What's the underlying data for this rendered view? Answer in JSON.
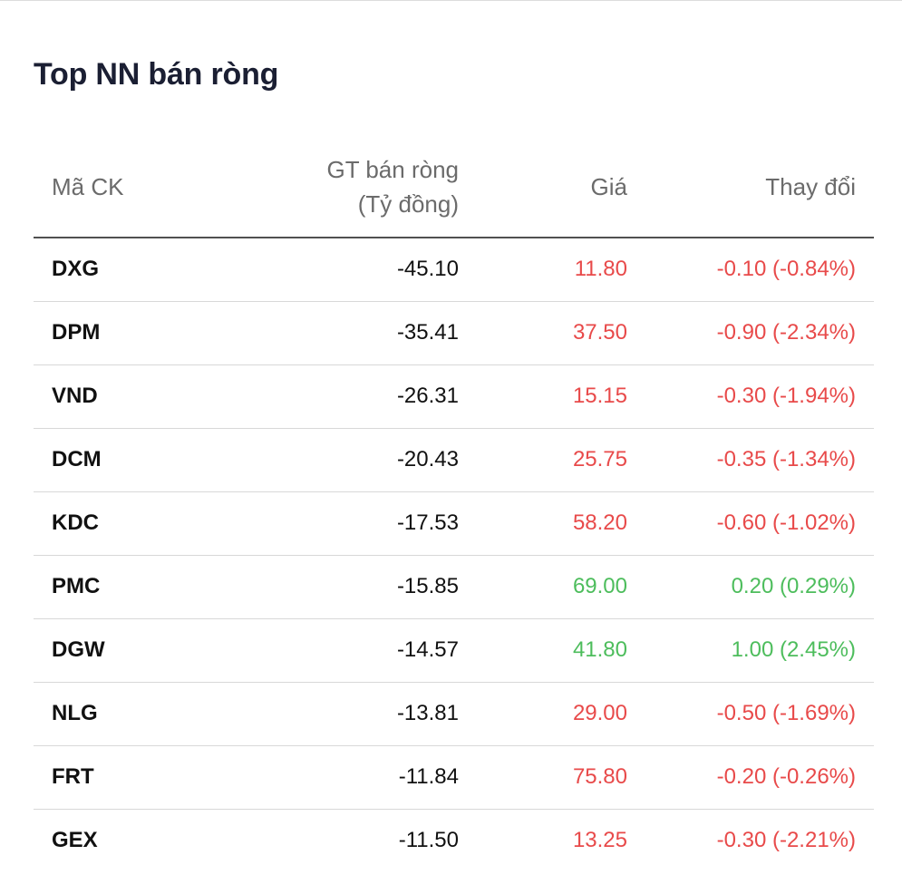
{
  "title": "Top NN bán ròng",
  "headers": {
    "code": "Mã CK",
    "value_line1": "GT bán ròng",
    "value_line2": "(Tỷ đồng)",
    "price": "Giá",
    "change": "Thay đổi"
  },
  "colors": {
    "down": "#e84a4a",
    "up": "#4dbd5c"
  },
  "rows": [
    {
      "code": "DXG",
      "value": "-45.10",
      "price": "11.80",
      "change": "-0.10 (-0.84%)",
      "trend": "down"
    },
    {
      "code": "DPM",
      "value": "-35.41",
      "price": "37.50",
      "change": "-0.90 (-2.34%)",
      "trend": "down"
    },
    {
      "code": "VND",
      "value": "-26.31",
      "price": "15.15",
      "change": "-0.30 (-1.94%)",
      "trend": "down"
    },
    {
      "code": "DCM",
      "value": "-20.43",
      "price": "25.75",
      "change": "-0.35 (-1.34%)",
      "trend": "down"
    },
    {
      "code": "KDC",
      "value": "-17.53",
      "price": "58.20",
      "change": "-0.60 (-1.02%)",
      "trend": "down"
    },
    {
      "code": "PMC",
      "value": "-15.85",
      "price": "69.00",
      "change": "0.20 (0.29%)",
      "trend": "up"
    },
    {
      "code": "DGW",
      "value": "-14.57",
      "price": "41.80",
      "change": "1.00 (2.45%)",
      "trend": "up"
    },
    {
      "code": "NLG",
      "value": "-13.81",
      "price": "29.00",
      "change": "-0.50 (-1.69%)",
      "trend": "down"
    },
    {
      "code": "FRT",
      "value": "-11.84",
      "price": "75.80",
      "change": "-0.20 (-0.26%)",
      "trend": "down"
    },
    {
      "code": "GEX",
      "value": "-11.50",
      "price": "13.25",
      "change": "-0.30 (-2.21%)",
      "trend": "down"
    }
  ]
}
